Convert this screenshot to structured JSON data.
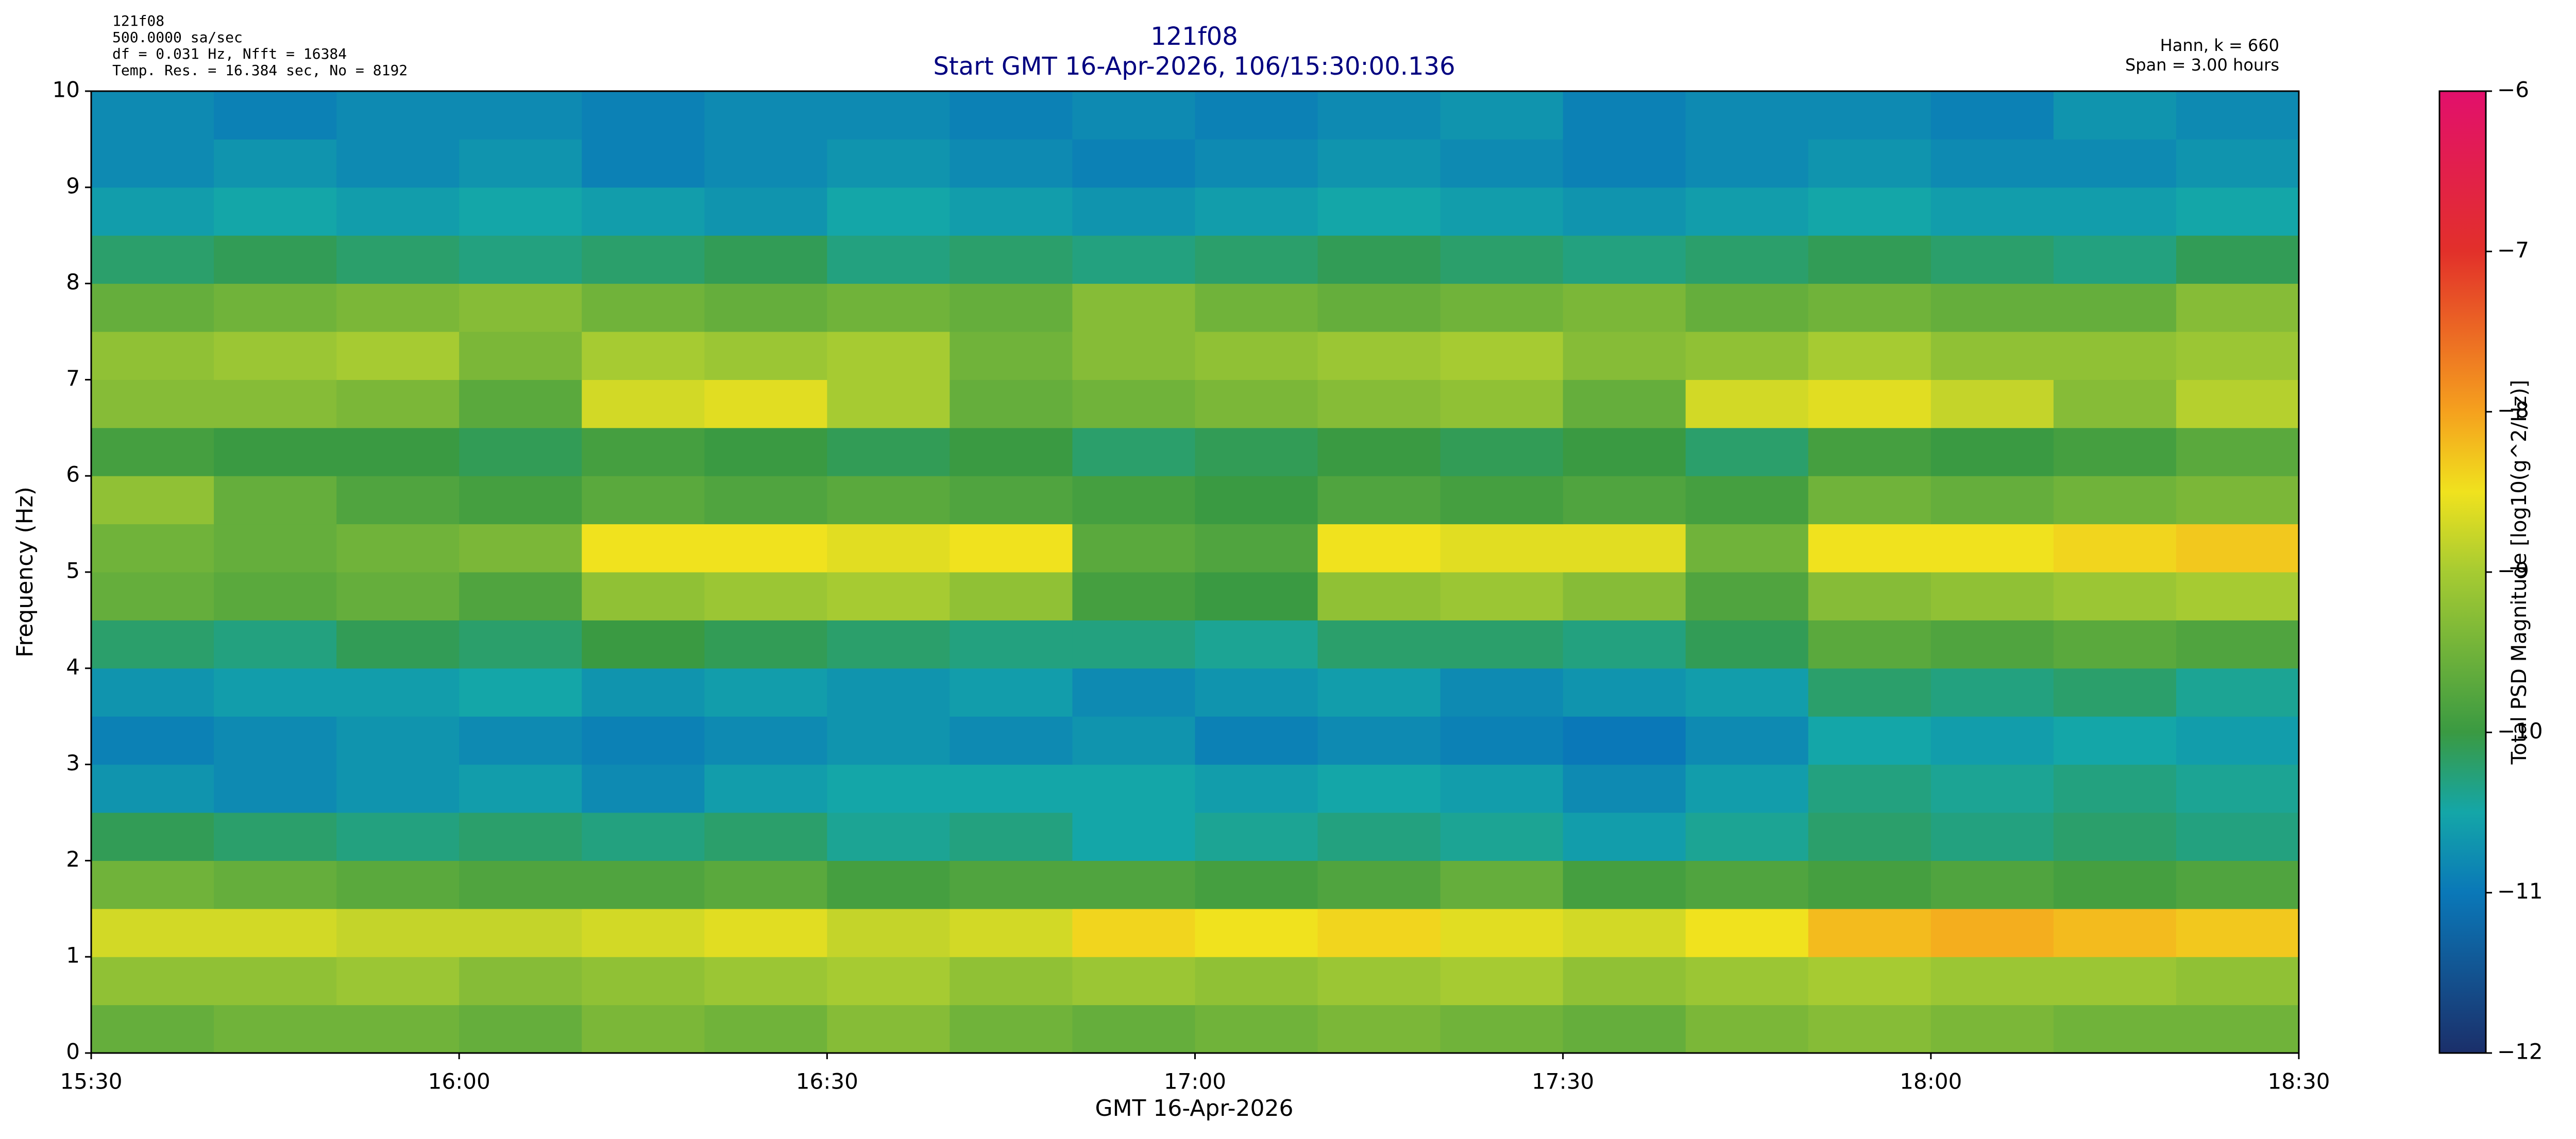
{
  "chart_data": {
    "type": "heatmap",
    "title": "121f08",
    "subtitle": "Start GMT 16-Apr-2026, 106/15:30:00.136",
    "info_left": [
      "121f08",
      "500.0000 sa/sec",
      "df = 0.031 Hz,  Nfft = 16384",
      "Temp. Res. = 16.384 sec, No = 8192"
    ],
    "info_right": [
      "Hann, k = 660",
      "Span = 3.00 hours"
    ],
    "x_label": "GMT 16-Apr-2026",
    "y_label": "Frequency (Hz)",
    "colorbar_label": "Total PSD Magnitude [log10(g^2/Hz)]",
    "xlim": [
      0,
      180
    ],
    "xticks": [
      {
        "value": 0,
        "label": "15:30"
      },
      {
        "value": 30,
        "label": "16:00"
      },
      {
        "value": 60,
        "label": "16:30"
      },
      {
        "value": 90,
        "label": "17:00"
      },
      {
        "value": 120,
        "label": "17:30"
      },
      {
        "value": 150,
        "label": "18:00"
      },
      {
        "value": 180,
        "label": "18:30"
      }
    ],
    "ylim": [
      0,
      10
    ],
    "yticks": [
      0,
      1,
      2,
      3,
      4,
      5,
      6,
      7,
      8,
      9,
      10
    ],
    "xbins": [
      0,
      10,
      20,
      30,
      40,
      50,
      60,
      70,
      80,
      90,
      100,
      110,
      120,
      130,
      140,
      150,
      160,
      170,
      180
    ],
    "ybins": [
      0,
      0.5,
      1,
      1.5,
      2,
      2.5,
      3,
      3.5,
      4,
      4.5,
      5,
      5.5,
      6,
      6.5,
      7,
      7.5,
      8,
      8.5,
      9,
      9.5,
      10
    ],
    "z": [
      [
        -9.6,
        -9.5,
        -9.5,
        -9.6,
        -9.4,
        -9.5,
        -9.3,
        -9.5,
        -9.6,
        -9.5,
        -9.4,
        -9.5,
        -9.6,
        -9.4,
        -9.3,
        -9.4,
        -9.5,
        -9.5
      ],
      [
        -9.2,
        -9.2,
        -9.1,
        -9.3,
        -9.2,
        -9.1,
        -9.0,
        -9.2,
        -9.1,
        -9.2,
        -9.1,
        -9.0,
        -9.2,
        -9.1,
        -9.0,
        -9.1,
        -9.1,
        -9.2
      ],
      [
        -8.7,
        -8.7,
        -8.8,
        -8.8,
        -8.7,
        -8.6,
        -8.8,
        -8.7,
        -8.4,
        -8.5,
        -8.4,
        -8.6,
        -8.7,
        -8.5,
        -8.2,
        -8.1,
        -8.2,
        -8.3
      ],
      [
        -9.5,
        -9.6,
        -9.7,
        -9.8,
        -9.8,
        -9.7,
        -9.9,
        -9.8,
        -9.8,
        -9.9,
        -9.8,
        -9.6,
        -9.9,
        -9.8,
        -9.9,
        -9.8,
        -9.9,
        -9.8
      ],
      [
        -10.1,
        -10.2,
        -10.3,
        -10.2,
        -10.3,
        -10.2,
        -10.4,
        -10.3,
        -10.5,
        -10.4,
        -10.3,
        -10.4,
        -10.6,
        -10.4,
        -10.2,
        -10.3,
        -10.2,
        -10.3
      ],
      [
        -10.7,
        -10.8,
        -10.7,
        -10.6,
        -10.8,
        -10.6,
        -10.5,
        -10.5,
        -10.5,
        -10.6,
        -10.5,
        -10.6,
        -10.8,
        -10.6,
        -10.3,
        -10.4,
        -10.3,
        -10.4
      ],
      [
        -10.9,
        -10.8,
        -10.7,
        -10.8,
        -10.9,
        -10.8,
        -10.7,
        -10.8,
        -10.7,
        -10.9,
        -10.8,
        -10.9,
        -11.0,
        -10.8,
        -10.5,
        -10.6,
        -10.5,
        -10.6
      ],
      [
        -10.7,
        -10.6,
        -10.6,
        -10.5,
        -10.7,
        -10.6,
        -10.7,
        -10.6,
        -10.8,
        -10.7,
        -10.6,
        -10.8,
        -10.7,
        -10.6,
        -10.2,
        -10.3,
        -10.2,
        -10.4
      ],
      [
        -10.2,
        -10.3,
        -10.1,
        -10.2,
        -10.0,
        -10.1,
        -10.2,
        -10.3,
        -10.3,
        -10.4,
        -10.2,
        -10.2,
        -10.3,
        -10.1,
        -9.7,
        -9.8,
        -9.7,
        -9.8
      ],
      [
        -9.6,
        -9.7,
        -9.6,
        -9.8,
        -9.2,
        -9.1,
        -9.0,
        -9.2,
        -9.9,
        -10.0,
        -9.2,
        -9.1,
        -9.3,
        -9.8,
        -9.3,
        -9.2,
        -9.1,
        -9.0
      ],
      [
        -9.5,
        -9.6,
        -9.5,
        -9.4,
        -8.5,
        -8.5,
        -8.6,
        -8.5,
        -9.7,
        -9.8,
        -8.5,
        -8.6,
        -8.6,
        -9.5,
        -8.5,
        -8.5,
        -8.4,
        -8.3
      ],
      [
        -9.2,
        -9.6,
        -9.8,
        -9.9,
        -9.7,
        -9.8,
        -9.7,
        -9.8,
        -9.9,
        -10.0,
        -9.8,
        -9.9,
        -9.8,
        -9.9,
        -9.5,
        -9.6,
        -9.5,
        -9.4
      ],
      [
        -9.9,
        -10.0,
        -10.0,
        -10.1,
        -9.9,
        -10.0,
        -10.1,
        -10.0,
        -10.2,
        -10.1,
        -10.0,
        -10.1,
        -10.0,
        -10.2,
        -9.9,
        -10.0,
        -9.9,
        -9.7
      ],
      [
        -9.3,
        -9.3,
        -9.4,
        -9.7,
        -8.7,
        -8.6,
        -9.0,
        -9.6,
        -9.5,
        -9.4,
        -9.3,
        -9.2,
        -9.6,
        -8.7,
        -8.6,
        -8.8,
        -9.3,
        -8.9
      ],
      [
        -9.2,
        -9.1,
        -9.0,
        -9.4,
        -9.0,
        -9.1,
        -9.0,
        -9.5,
        -9.3,
        -9.2,
        -9.1,
        -9.0,
        -9.3,
        -9.2,
        -9.0,
        -9.2,
        -9.2,
        -9.1
      ],
      [
        -9.6,
        -9.5,
        -9.4,
        -9.3,
        -9.5,
        -9.6,
        -9.5,
        -9.6,
        -9.3,
        -9.5,
        -9.6,
        -9.5,
        -9.4,
        -9.6,
        -9.5,
        -9.6,
        -9.6,
        -9.3
      ],
      [
        -10.2,
        -10.1,
        -10.2,
        -10.3,
        -10.2,
        -10.1,
        -10.3,
        -10.2,
        -10.3,
        -10.2,
        -10.1,
        -10.2,
        -10.3,
        -10.2,
        -10.1,
        -10.2,
        -10.3,
        -10.1
      ],
      [
        -10.6,
        -10.5,
        -10.6,
        -10.5,
        -10.6,
        -10.7,
        -10.5,
        -10.6,
        -10.7,
        -10.6,
        -10.5,
        -10.6,
        -10.7,
        -10.6,
        -10.5,
        -10.6,
        -10.6,
        -10.5
      ],
      [
        -10.8,
        -10.7,
        -10.8,
        -10.7,
        -10.9,
        -10.8,
        -10.7,
        -10.8,
        -10.9,
        -10.8,
        -10.7,
        -10.8,
        -10.9,
        -10.8,
        -10.7,
        -10.8,
        -10.8,
        -10.7
      ],
      [
        -10.8,
        -10.9,
        -10.8,
        -10.8,
        -10.9,
        -10.8,
        -10.8,
        -10.9,
        -10.8,
        -10.9,
        -10.8,
        -10.7,
        -10.9,
        -10.8,
        -10.8,
        -10.9,
        -10.7,
        -10.8
      ]
    ],
    "clim": [
      -12,
      -6
    ],
    "cticks": [
      {
        "value": -12,
        "label": "−12"
      },
      {
        "value": -11,
        "label": "−11"
      },
      {
        "value": -10,
        "label": "−10"
      },
      {
        "value": -9,
        "label": "−9"
      },
      {
        "value": -8,
        "label": "−8"
      },
      {
        "value": -7,
        "label": "−7"
      },
      {
        "value": -6,
        "label": "−6"
      }
    ],
    "colorscale": [
      [
        -12,
        "#1b2f6a"
      ],
      [
        -11,
        "#0a78b8"
      ],
      [
        -10.5,
        "#14a6a8"
      ],
      [
        -10,
        "#3a9a42"
      ],
      [
        -9,
        "#a6cb32"
      ],
      [
        -8.5,
        "#f0e21e"
      ],
      [
        -8,
        "#f5a11e"
      ],
      [
        -7,
        "#e2302a"
      ],
      [
        -6,
        "#e2106c"
      ]
    ],
    "title_color": "#000080"
  }
}
